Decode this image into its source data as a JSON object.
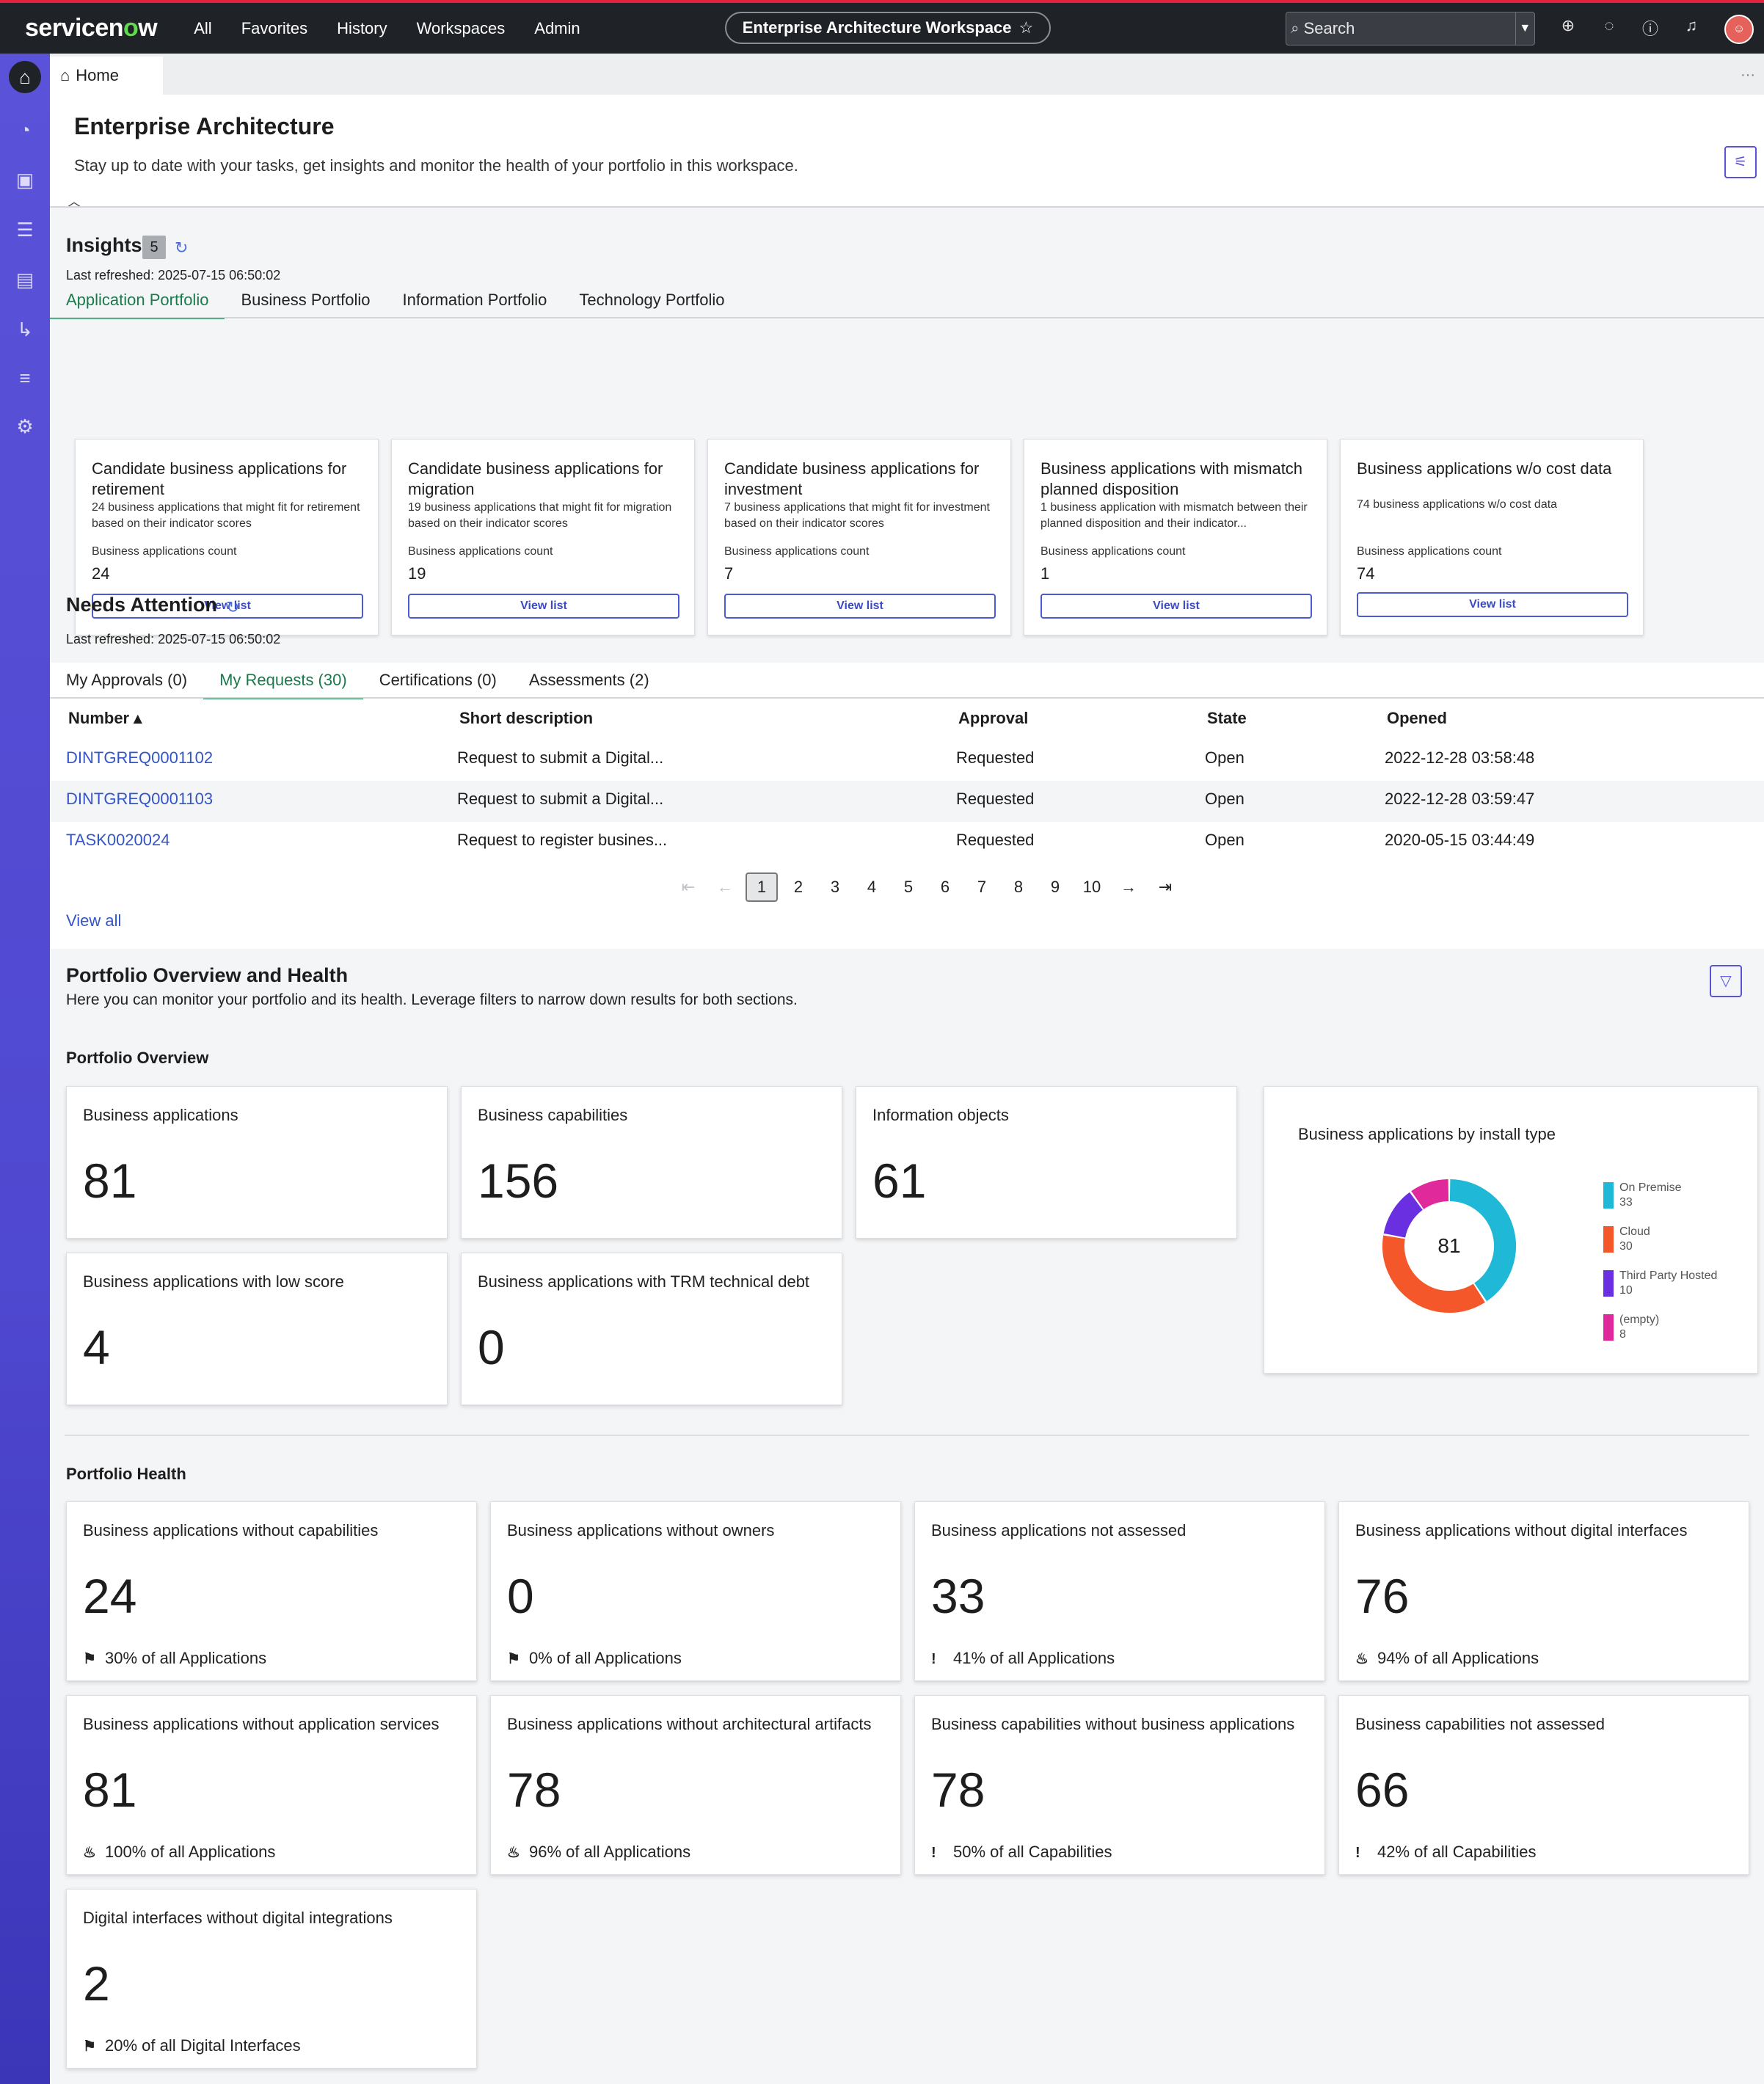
{
  "topbar": {
    "logo_pre": "servicen",
    "logo_o": "o",
    "logo_post": "w",
    "nav": [
      "All",
      "Favorites",
      "History",
      "Workspaces",
      "Admin"
    ],
    "workspace": "Enterprise Architecture Workspace",
    "search_placeholder": "Search"
  },
  "tabstrip": {
    "home_tab": "Home"
  },
  "header": {
    "title": "Enterprise Architecture",
    "subtitle": "Stay up to date with your tasks, get insights and monitor the health of your portfolio in this workspace."
  },
  "insights": {
    "title": "Insights",
    "count": "5",
    "last_refreshed": "Last refreshed: 2025-07-15 06:50:02",
    "tabs": [
      "Application Portfolio",
      "Business Portfolio",
      "Information Portfolio",
      "Technology Portfolio"
    ],
    "cards": [
      {
        "title": "Candidate business applications for retirement",
        "desc": "24 business applications that might fit for retirement based on their indicator scores",
        "count_label": "Business applications count",
        "count": "24",
        "button": "View list"
      },
      {
        "title": "Candidate business applications for migration",
        "desc": "19 business applications that might fit for migration based on their indicator scores",
        "count_label": "Business applications count",
        "count": "19",
        "button": "View list"
      },
      {
        "title": "Candidate business applications for investment",
        "desc": "7 business applications that might fit for investment based on their indicator scores",
        "count_label": "Business applications count",
        "count": "7",
        "button": "View list"
      },
      {
        "title": "Business applications with mismatch planned disposition",
        "desc": "1 business application with mismatch between their planned disposition and their indicator...",
        "count_label": "Business applications count",
        "count": "1",
        "button": "View list"
      },
      {
        "title": "Business applications w/o cost data",
        "desc": "74 business applications w/o cost data",
        "count_label": "Business applications count",
        "count": "74",
        "button": "View list"
      }
    ]
  },
  "attention": {
    "title": "Needs Attention",
    "last_refreshed": "Last refreshed: 2025-07-15 06:50:02",
    "tabs": [
      "My Approvals (0)",
      "My Requests (30)",
      "Certifications (0)",
      "Assessments (2)"
    ],
    "columns": [
      "Number",
      "Short description",
      "Approval",
      "State",
      "Opened"
    ],
    "rows": [
      {
        "number": "DINTGREQ0001102",
        "desc": "Request to submit a Digital...",
        "approval": "Requested",
        "state": "Open",
        "opened": "2022-12-28 03:58:48"
      },
      {
        "number": "DINTGREQ0001103",
        "desc": "Request to submit a Digital...",
        "approval": "Requested",
        "state": "Open",
        "opened": "2022-12-28 03:59:47"
      },
      {
        "number": "TASK0020024",
        "desc": "Request to register busines...",
        "approval": "Requested",
        "state": "Open",
        "opened": "2020-05-15 03:44:49"
      }
    ],
    "pages": [
      "1",
      "2",
      "3",
      "4",
      "5",
      "6",
      "7",
      "8",
      "9",
      "10"
    ],
    "view_all": "View all"
  },
  "portfolio": {
    "title": "Portfolio Overview and Health",
    "subtitle": "Here you can monitor your portfolio and its health. Leverage filters to narrow down results for both sections.",
    "overview_title": "Portfolio Overview",
    "overview": [
      {
        "label": "Business applications",
        "value": "81"
      },
      {
        "label": "Business capabilities",
        "value": "156"
      },
      {
        "label": "Information objects",
        "value": "61"
      },
      {
        "label": "Business applications with low score",
        "value": "4"
      },
      {
        "label": "Business applications with TRM technical debt",
        "value": "0"
      }
    ],
    "health_title": "Portfolio Health",
    "health": [
      {
        "label": "Business applications without capabilities",
        "value": "24",
        "footer": "30% of all Applications",
        "icon": "flag-icon"
      },
      {
        "label": "Business applications without owners",
        "value": "0",
        "footer": "0% of all Applications",
        "icon": "flag-icon"
      },
      {
        "label": "Business applications not assessed",
        "value": "33",
        "footer": "41% of all Applications",
        "icon": "exclamation-icon"
      },
      {
        "label": "Business applications without digital interfaces",
        "value": "76",
        "footer": "94% of all Applications",
        "icon": "fire-icon"
      },
      {
        "label": "Business applications without application services",
        "value": "81",
        "footer": "100% of all Applications",
        "icon": "fire-icon"
      },
      {
        "label": "Business applications without architectural artifacts",
        "value": "78",
        "footer": "96% of all Applications",
        "icon": "fire-icon"
      },
      {
        "label": "Business capabilities without business applications",
        "value": "78",
        "footer": "50% of all Capabilities",
        "icon": "exclamation-icon"
      },
      {
        "label": "Business capabilities not assessed",
        "value": "66",
        "footer": "42% of all Capabilities",
        "icon": "exclamation-icon"
      },
      {
        "label": "Digital interfaces without digital integrations",
        "value": "2",
        "footer": "20% of all Digital Interfaces",
        "icon": "flag-icon"
      }
    ]
  },
  "chart_data": {
    "type": "pie",
    "title": "Business applications by install type",
    "center_label": "81",
    "categories": [
      "On Premise",
      "Cloud",
      "Third Party Hosted",
      "(empty)"
    ],
    "values": [
      33,
      30,
      10,
      8
    ],
    "colors": [
      "#1fb8d6",
      "#f4572a",
      "#6a2fe0",
      "#e0299b"
    ],
    "legend_position": "right"
  }
}
